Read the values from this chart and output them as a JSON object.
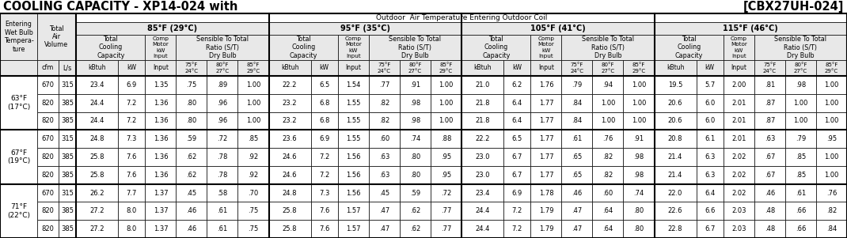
{
  "title_left": "COOLING CAPACITY - XP14-024 with",
  "title_right": "[CBX27UH-024]",
  "outdoor_header": "Outdoor  Air Temperature Entering Outdoor Coil",
  "temp_labels": [
    "85°F (29°C)",
    "95°F (35°C)",
    "105°F (41°C)",
    "115°F (46°C)"
  ],
  "dry_bulb_labels": [
    "75°F\n24°C",
    "80°F\n27°C",
    "85°F\n29°C"
  ],
  "row_group_labels": [
    "63°F\n(17°C)",
    "67°F\n(19°C)",
    "71°F\n(22°C)"
  ],
  "data_rows": [
    [
      670,
      315,
      23.4,
      6.9,
      1.35,
      0.75,
      0.89,
      1.0,
      22.2,
      6.5,
      1.54,
      0.77,
      0.91,
      1.0,
      21.0,
      6.2,
      1.76,
      0.79,
      0.94,
      1.0,
      19.5,
      5.7,
      2.0,
      0.81,
      0.98,
      1.0
    ],
    [
      820,
      385,
      24.4,
      7.2,
      1.36,
      0.8,
      0.96,
      1.0,
      23.2,
      6.8,
      1.55,
      0.82,
      0.98,
      1.0,
      21.8,
      6.4,
      1.77,
      0.84,
      1.0,
      1.0,
      20.6,
      6.0,
      2.01,
      0.87,
      1.0,
      1.0
    ],
    [
      820,
      385,
      24.4,
      7.2,
      1.36,
      0.8,
      0.96,
      1.0,
      23.2,
      6.8,
      1.55,
      0.82,
      0.98,
      1.0,
      21.8,
      6.4,
      1.77,
      0.84,
      1.0,
      1.0,
      20.6,
      6.0,
      2.01,
      0.87,
      1.0,
      1.0
    ],
    [
      670,
      315,
      24.8,
      7.3,
      1.36,
      0.59,
      0.72,
      0.85,
      23.6,
      6.9,
      1.55,
      0.6,
      0.74,
      0.88,
      22.2,
      6.5,
      1.77,
      0.61,
      0.76,
      0.91,
      20.8,
      6.1,
      2.01,
      0.63,
      0.79,
      0.95
    ],
    [
      820,
      385,
      25.8,
      7.6,
      1.36,
      0.62,
      0.78,
      0.92,
      24.6,
      7.2,
      1.56,
      0.63,
      0.8,
      0.95,
      23.0,
      6.7,
      1.77,
      0.65,
      0.82,
      0.98,
      21.4,
      6.3,
      2.02,
      0.67,
      0.85,
      1.0
    ],
    [
      820,
      385,
      25.8,
      7.6,
      1.36,
      0.62,
      0.78,
      0.92,
      24.6,
      7.2,
      1.56,
      0.63,
      0.8,
      0.95,
      23.0,
      6.7,
      1.77,
      0.65,
      0.82,
      0.98,
      21.4,
      6.3,
      2.02,
      0.67,
      0.85,
      1.0
    ],
    [
      670,
      315,
      26.2,
      7.7,
      1.37,
      0.45,
      0.58,
      0.7,
      24.8,
      7.3,
      1.56,
      0.45,
      0.59,
      0.72,
      23.4,
      6.9,
      1.78,
      0.46,
      0.6,
      0.74,
      22.0,
      6.4,
      2.02,
      0.46,
      0.61,
      0.76
    ],
    [
      820,
      385,
      27.2,
      8.0,
      1.37,
      0.46,
      0.61,
      0.75,
      25.8,
      7.6,
      1.57,
      0.47,
      0.62,
      0.77,
      24.4,
      7.2,
      1.79,
      0.47,
      0.64,
      0.8,
      22.6,
      6.6,
      2.03,
      0.48,
      0.66,
      0.82
    ],
    [
      820,
      385,
      27.2,
      8.0,
      1.37,
      0.46,
      0.61,
      0.75,
      25.8,
      7.6,
      1.57,
      0.47,
      0.62,
      0.77,
      24.4,
      7.2,
      1.79,
      0.47,
      0.64,
      0.8,
      22.8,
      6.7,
      2.03,
      0.48,
      0.66,
      0.84
    ]
  ],
  "background_color": "#ffffff",
  "header_bg": "#e8e8e8",
  "title_fontsize": 10.5,
  "header_fontsize": 6.0,
  "data_fontsize": 6.0,
  "col_label_fontsize": 5.5
}
